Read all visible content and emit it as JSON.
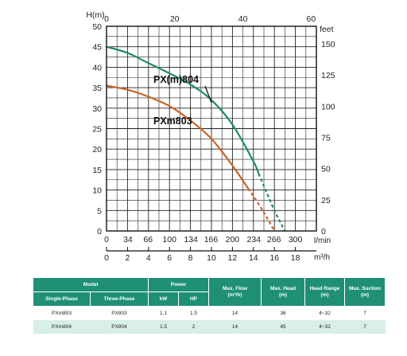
{
  "chart_data": {
    "type": "line",
    "ylabel_left": "H(m)",
    "ylabel_right": "feet",
    "x_unit_top": "l/min",
    "x_unit_bottom": "m³/h",
    "y_ticks": [
      "0",
      "5",
      "10",
      "15",
      "20",
      "25",
      "30",
      "35",
      "40",
      "45",
      "50"
    ],
    "ylim": [
      0,
      50
    ],
    "top_ticks": [
      "0",
      "20",
      "40",
      "60"
    ],
    "right_ticks": [
      "0",
      "25",
      "50",
      "75",
      "100",
      "125",
      "150"
    ],
    "lpm_ticks": [
      "0",
      "34",
      "66",
      "100",
      "134",
      "166",
      "200",
      "234",
      "266",
      "300"
    ],
    "m3h_ticks": [
      "0",
      "2",
      "4",
      "6",
      "8",
      "10",
      "12",
      "14",
      "16",
      "18"
    ],
    "xlim_m3h": [
      0,
      20
    ],
    "grid": true,
    "series": [
      {
        "name": "PX(m)804",
        "color": "#1f8a70",
        "dashed_from": 14.5,
        "points": [
          [
            0,
            45
          ],
          [
            2,
            43.5
          ],
          [
            4,
            41
          ],
          [
            6,
            38.5
          ],
          [
            8,
            35.8
          ],
          [
            10,
            32
          ],
          [
            12,
            26
          ],
          [
            14,
            17
          ],
          [
            15,
            11
          ],
          [
            16,
            5
          ],
          [
            17,
            0
          ]
        ]
      },
      {
        "name": "PXm803",
        "color": "#c9642a",
        "dashed_from": 13.5,
        "points": [
          [
            0,
            35.5
          ],
          [
            2,
            34.5
          ],
          [
            4,
            32.8
          ],
          [
            6,
            30.5
          ],
          [
            8,
            27
          ],
          [
            10,
            22.5
          ],
          [
            12,
            16
          ],
          [
            14,
            8.5
          ],
          [
            15,
            4.5
          ],
          [
            16,
            0
          ]
        ]
      }
    ]
  },
  "spec_table": {
    "header_top": {
      "model": "Model",
      "power": "Power",
      "max_flow": "Max. Flow\n(m³/h)",
      "max_head": "Max. Head\n(m)",
      "head_range": "Head Range\n(m)",
      "max_suction": "Max. Suction\n(m)"
    },
    "header_sub": {
      "single_phase": "Single-Phase",
      "three_phase": "Three-Phase",
      "kw": "kW",
      "hp": "HP"
    },
    "rows": [
      {
        "single": "PXm803",
        "three": "PX803",
        "kw": "1.1",
        "hp": "1.5",
        "flow": "14",
        "head": "36",
        "range": "4~32",
        "suction": "7"
      },
      {
        "single": "PXm804",
        "three": "PX804",
        "kw": "1.5",
        "hp": "2",
        "flow": "14",
        "head": "45",
        "range": "4~32",
        "suction": "7"
      }
    ]
  }
}
